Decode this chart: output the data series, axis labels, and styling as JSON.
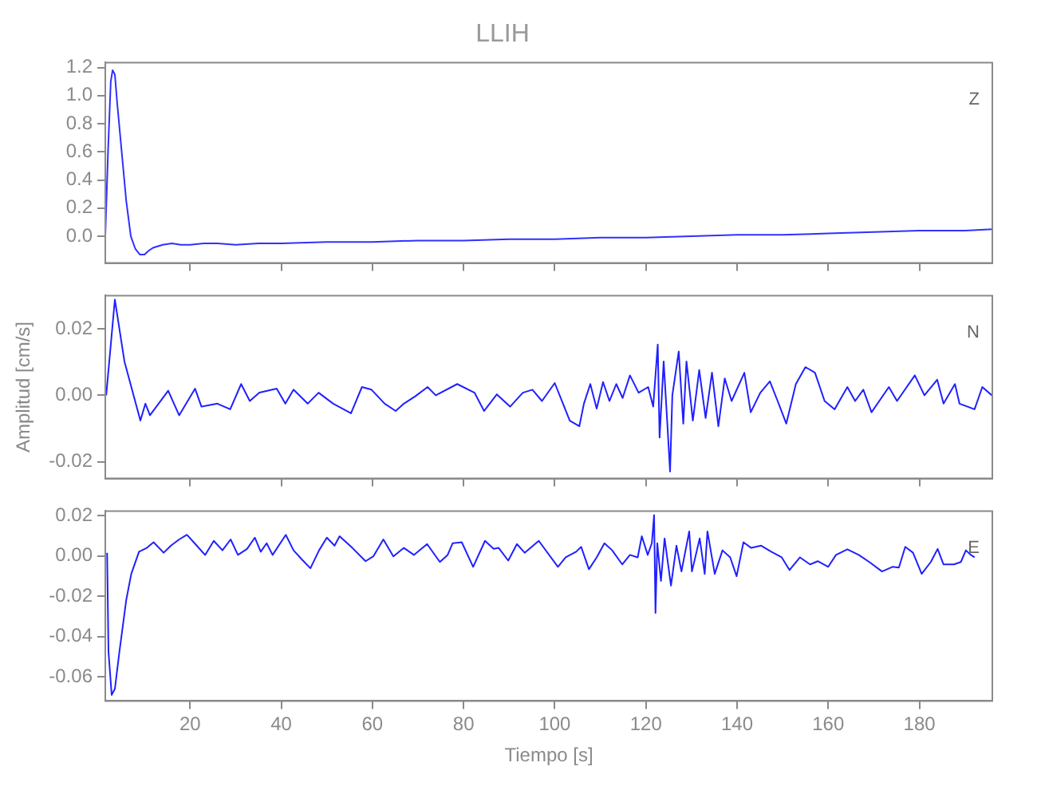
{
  "chart_data": [
    {
      "type": "line",
      "title": "LLIH",
      "annotations": [
        "Z"
      ],
      "xlim": [
        1.4,
        196
      ],
      "xticks": [
        20,
        40,
        60,
        80,
        100,
        120,
        140,
        160,
        180
      ],
      "ylim": [
        -0.19,
        1.235
      ],
      "yticks": [
        {
          "value": 0,
          "label": "0.0"
        },
        {
          "value": 0.2,
          "label": "0.2"
        },
        {
          "value": 0.4,
          "label": "0.4"
        },
        {
          "value": 0.6,
          "label": "0.6"
        },
        {
          "value": 0.8,
          "label": "0.8"
        },
        {
          "value": 1,
          "label": "1.0"
        },
        {
          "value": 1.2,
          "label": "1.2"
        }
      ],
      "tick_labels": "y",
      "legend": false,
      "x": [
        1.4,
        2,
        2.6,
        3,
        3.5,
        4,
        5,
        6,
        7,
        8,
        9,
        10,
        11,
        12,
        14,
        16,
        18,
        20,
        23,
        26,
        30,
        35,
        40,
        50,
        60,
        70,
        80,
        90,
        100,
        110,
        120,
        130,
        140,
        150,
        160,
        170,
        180,
        190,
        196
      ],
      "series": [
        {
          "color": "#3030ff",
          "values": [
            0.0,
            0.6,
            1.1,
            1.18,
            1.15,
            0.95,
            0.6,
            0.25,
            0.0,
            -0.09,
            -0.13,
            -0.13,
            -0.1,
            -0.08,
            -0.06,
            -0.05,
            -0.06,
            -0.06,
            -0.05,
            -0.05,
            -0.06,
            -0.05,
            -0.05,
            -0.04,
            -0.04,
            -0.03,
            -0.03,
            -0.02,
            -0.02,
            -0.01,
            -0.01,
            0.0,
            0.01,
            0.01,
            0.02,
            0.03,
            0.04,
            0.04,
            0.05
          ]
        }
      ]
    },
    {
      "type": "line",
      "ylabel": "Amplitud [cm/s]",
      "annotations": [
        "N"
      ],
      "xlim": [
        1.4,
        196
      ],
      "xticks": [
        20,
        40,
        60,
        80,
        100,
        120,
        140,
        160,
        180
      ],
      "ylim": [
        -0.025,
        0.03
      ],
      "yticks": [
        {
          "value": -0.02,
          "label": "-0.02"
        },
        {
          "value": 0,
          "label": "0.00"
        },
        {
          "value": 0.02,
          "label": "0.02"
        }
      ],
      "tick_labels": "y",
      "legend": false,
      "x": [
        1.6,
        3.5,
        5.6,
        9.1,
        10.2,
        11.2,
        15.2,
        17.6,
        21.1,
        22.5,
        26,
        28.8,
        31.2,
        33.1,
        35.2,
        39,
        40.9,
        42.7,
        45.8,
        48.2,
        51.4,
        55.3,
        57.7,
        59.8,
        62.7,
        65.1,
        66.9,
        69.4,
        72.1,
        73.9,
        78.6,
        82.4,
        84.5,
        87.3,
        90.2,
        93,
        95.1,
        97.2,
        100,
        103.3,
        105.4,
        106.4,
        107.8,
        109.2,
        110.6,
        112,
        113.5,
        114.9,
        116.5,
        118.4,
        120.5,
        121.6,
        122.6,
        123,
        123.9,
        124.7,
        125.3,
        125.8,
        127.2,
        128.2,
        128.9,
        130.3,
        131.7,
        133.1,
        134.5,
        135.9,
        137.3,
        138.8,
        141.6,
        143,
        145.1,
        147.2,
        148.9,
        150.8,
        152.9,
        155,
        157.1,
        159.2,
        161.4,
        164.2,
        165.9,
        167.7,
        169.5,
        173.3,
        175.1,
        179,
        181.1,
        183.9,
        185.3,
        187.8,
        188.8,
        192.1,
        193.8,
        195.9
      ],
      "series": [
        {
          "color": "#2020ff",
          "values": [
            0.0,
            0.0288,
            0.0102,
            -0.0076,
            -0.0025,
            -0.006,
            0.0014,
            -0.006,
            0.002,
            -0.0034,
            -0.0025,
            -0.0042,
            0.0034,
            -0.0017,
            0.0008,
            0.002,
            -0.0025,
            0.0017,
            -0.0025,
            0.0008,
            -0.0025,
            -0.0054,
            0.0025,
            0.0017,
            -0.0025,
            -0.0047,
            -0.0025,
            -0.0003,
            0.0025,
            0.0,
            0.0034,
            0.0008,
            -0.0047,
            0.0003,
            -0.0034,
            0.0008,
            0.0017,
            -0.0017,
            0.0037,
            -0.0076,
            -0.0093,
            -0.0025,
            0.0034,
            -0.004,
            0.004,
            -0.0017,
            0.0034,
            -0.0008,
            0.006,
            0.0008,
            0.0025,
            -0.0034,
            0.0153,
            -0.0127,
            0.0102,
            -0.0085,
            -0.0229,
            0.0,
            0.0132,
            -0.0085,
            0.0102,
            -0.0076,
            0.0076,
            -0.0068,
            0.0068,
            -0.0093,
            0.0051,
            -0.0017,
            0.0068,
            -0.0051,
            0.0008,
            0.0042,
            -0.0017,
            -0.0085,
            0.0034,
            0.0085,
            0.0068,
            -0.0017,
            -0.0042,
            0.0025,
            -0.0017,
            0.0017,
            -0.0051,
            0.0025,
            -0.0017,
            0.006,
            0.0,
            0.0047,
            -0.0025,
            0.0034,
            -0.0025,
            -0.0042,
            0.0025,
            0.0
          ]
        }
      ]
    },
    {
      "type": "line",
      "xlabel": "Tiempo [s]",
      "annotations": [
        "E"
      ],
      "xlim": [
        1.4,
        196
      ],
      "xticks": [
        20,
        40,
        60,
        80,
        100,
        120,
        140,
        160,
        180
      ],
      "ylim": [
        -0.072,
        0.0223
      ],
      "yticks": [
        {
          "value": -0.06,
          "label": "-0.06"
        },
        {
          "value": -0.04,
          "label": "-0.04"
        },
        {
          "value": -0.02,
          "label": "-0.02"
        },
        {
          "value": 0,
          "label": "0.00"
        },
        {
          "value": 0.02,
          "label": "0.02"
        }
      ],
      "legend": false,
      "x": [
        1.8,
        2.1,
        2.8,
        3.5,
        4.5,
        6,
        7.1,
        8.8,
        10.5,
        12,
        14.2,
        15.8,
        17.6,
        19.3,
        21,
        23.3,
        25.2,
        27.1,
        28.9,
        30.5,
        32.5,
        34.2,
        35.5,
        36.8,
        38.1,
        41,
        42.7,
        44.6,
        46.4,
        48.3,
        50,
        51.7,
        52.8,
        55.6,
        58.5,
        60.2,
        62.4,
        64.6,
        66.9,
        69.1,
        72,
        74.8,
        76.5,
        77.6,
        79.6,
        82.1,
        84.7,
        86.6,
        87.7,
        89.8,
        91.7,
        93.4,
        96.5,
        100.7,
        102.4,
        104.7,
        105.8,
        107.5,
        109.2,
        110.9,
        112.6,
        114.8,
        116.5,
        118.2,
        119.1,
        120.4,
        121.3,
        121.8,
        122.1,
        122.5,
        123.3,
        124.1,
        125.5,
        126.7,
        127.8,
        129.5,
        130.1,
        131.8,
        132.9,
        133.5,
        135.1,
        136.8,
        138.5,
        139.9,
        141.4,
        143.1,
        145.3,
        147.5,
        149.8,
        151.5,
        153.8,
        156,
        157.7,
        160,
        161.7,
        164.2,
        166.7,
        169,
        171.8,
        174.1,
        175.5,
        176.9,
        178.6,
        180.5,
        182.5,
        184,
        185.3,
        187.6,
        189.1,
        190.2,
        191.3,
        192.1
      ],
      "series": [
        {
          "color": "#2020ff",
          "values": [
            0.0016,
            -0.0475,
            -0.069,
            -0.066,
            -0.0475,
            -0.0218,
            -0.0089,
            0.0021,
            0.004,
            0.0068,
            0.0016,
            0.0051,
            0.0082,
            0.0105,
            0.0063,
            0.0005,
            0.0075,
            0.0028,
            0.0082,
            0.0005,
            0.0035,
            0.0091,
            0.0021,
            0.0063,
            0.0005,
            0.0105,
            0.0028,
            -0.0019,
            -0.0061,
            0.0028,
            0.0091,
            0.0051,
            0.0098,
            0.004,
            -0.0026,
            -0.0002,
            0.0082,
            -0.0002,
            0.004,
            0.0005,
            0.0059,
            -0.003,
            0.0005,
            0.0063,
            0.0068,
            -0.0054,
            0.0075,
            0.0035,
            0.004,
            -0.0023,
            0.0059,
            0.0016,
            0.0075,
            -0.0054,
            -0.0007,
            0.0021,
            0.0045,
            -0.0066,
            -0.0007,
            0.0063,
            0.0028,
            -0.0042,
            0.0005,
            -0.0007,
            0.0098,
            0.0005,
            0.0063,
            0.0203,
            -0.0283,
            0.0063,
            -0.0124,
            0.0087,
            -0.0147,
            0.0051,
            -0.0077,
            0.0122,
            -0.0077,
            0.0087,
            -0.0089,
            0.0122,
            -0.0089,
            0.0028,
            -0.0007,
            -0.0101,
            0.0068,
            0.004,
            0.0051,
            0.0021,
            -0.0007,
            -0.007,
            -0.0007,
            -0.0042,
            -0.0026,
            -0.0054,
            0.0005,
            0.0033,
            0.0005,
            -0.003,
            -0.0077,
            -0.0054,
            -0.0058,
            0.0045,
            0.0016,
            -0.0089,
            -0.003,
            0.0035,
            -0.0042,
            -0.0042,
            -0.003,
            0.0028,
            0.0005,
            -0.0007
          ]
        }
      ]
    }
  ]
}
